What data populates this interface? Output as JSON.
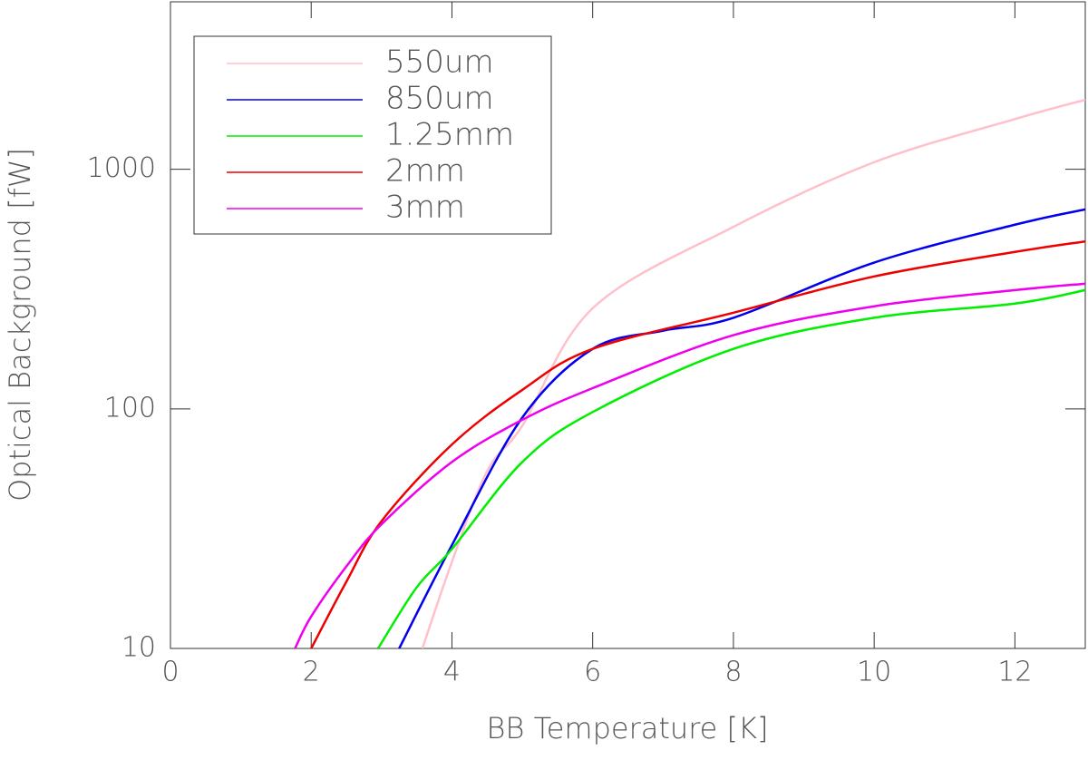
{
  "chart_data": {
    "type": "line",
    "xlabel": "BB Temperature [K]",
    "ylabel": "Optical Background [fW]",
    "xlim": [
      0,
      13
    ],
    "xticks": [
      0,
      2,
      4,
      6,
      8,
      10,
      12
    ],
    "ylim": [
      10,
      5000
    ],
    "yticks": [
      10,
      100,
      1000
    ],
    "log_y": true,
    "legend": "upper left",
    "series": [
      {
        "name": "550um",
        "color": "#ffc0cb",
        "x": [
          3.58,
          4,
          4.5,
          5,
          6,
          8,
          10,
          12,
          13
        ],
        "values": [
          10,
          23,
          55,
          85,
          263,
          575,
          1070,
          1620,
          1950
        ]
      },
      {
        "name": "850um",
        "color": "#0000ee",
        "x": [
          3.25,
          4,
          5,
          6,
          7,
          8,
          10,
          12,
          13
        ],
        "values": [
          10,
          27,
          92,
          178,
          212,
          240,
          408,
          587,
          680
        ]
      },
      {
        "name": "1.25mm",
        "color": "#00ee00",
        "x": [
          2.95,
          3.5,
          4,
          5,
          6,
          8,
          10,
          12,
          13
        ],
        "values": [
          10,
          18,
          26,
          60,
          97,
          178,
          240,
          275,
          313
        ]
      },
      {
        "name": "2mm",
        "color": "#ee0000",
        "x": [
          2.0,
          2.5,
          3,
          4,
          5,
          6,
          8,
          10,
          12,
          13
        ],
        "values": [
          10,
          19,
          34,
          71,
          120,
          178,
          252,
          357,
          452,
          500
        ]
      },
      {
        "name": "3mm",
        "color": "#ee00ee",
        "x": [
          1.77,
          2,
          2.5,
          3,
          4,
          5,
          6,
          8,
          10,
          12,
          13
        ],
        "values": [
          10,
          13.6,
          22,
          33,
          60,
          90,
          122,
          203,
          268,
          313,
          333
        ]
      }
    ]
  }
}
